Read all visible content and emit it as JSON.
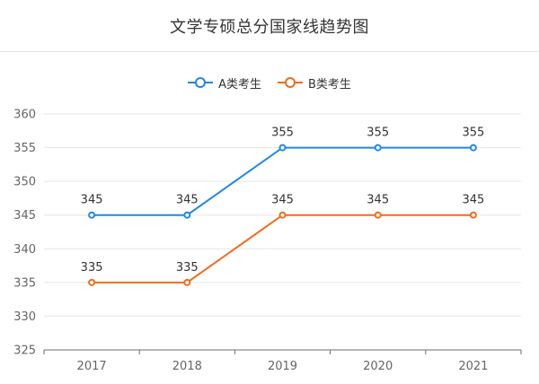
{
  "chart_data": {
    "type": "line",
    "title": "文学专硕总分国家线趋势图",
    "categories": [
      "2017",
      "2018",
      "2019",
      "2020",
      "2021"
    ],
    "series": [
      {
        "name": "A类考生",
        "values": [
          345,
          345,
          355,
          355,
          355
        ],
        "color": "#1E88E5"
      },
      {
        "name": "B类考生",
        "values": [
          335,
          335,
          345,
          345,
          345
        ],
        "color": "#F26B1D"
      }
    ],
    "ylim": [
      325,
      360
    ],
    "yticks": [
      325,
      330,
      335,
      340,
      345,
      350,
      355,
      360
    ],
    "grid": true,
    "legend_position": "top-center"
  }
}
